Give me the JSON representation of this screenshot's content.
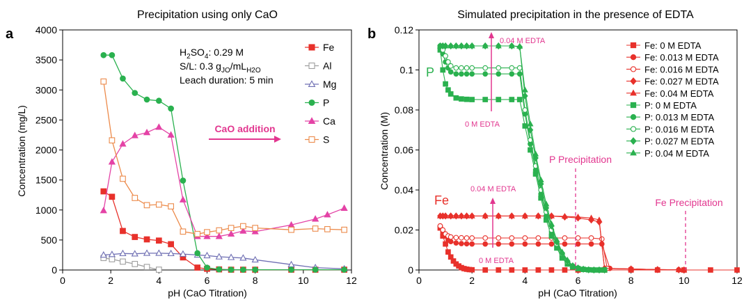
{
  "panel_a": {
    "letter": "a",
    "title": "Precipitation using only CaO",
    "xlabel": "pH (CaO Titration)",
    "ylabel": "Concentration (mg/L)",
    "xlim": [
      0,
      12
    ],
    "ylim": [
      0,
      4000
    ],
    "xticks": [
      "0",
      "2",
      "4",
      "6",
      "8",
      "10",
      "12"
    ],
    "yticks": [
      "0",
      "500",
      "1000",
      "1500",
      "2000",
      "2500",
      "3000",
      "3500",
      "4000"
    ],
    "ann_h2so4": [
      "H",
      "2",
      "SO",
      "4",
      ": 0.29 M"
    ],
    "ann_sl": [
      "S/L: 0.3 g",
      "JO",
      "/mL",
      "H2O"
    ],
    "ann_leach": "Leach duration: 5 min",
    "arrow_label": "CaO addition"
  },
  "panel_b": {
    "letter": "b",
    "title": "Simulated precipitation in the presence of EDTA",
    "xlabel": "pH (CaO Titration)",
    "ylabel": "Concentration (M)",
    "xlim": [
      0,
      12
    ],
    "ylim": [
      0,
      0.12
    ],
    "xticks": [
      "0",
      "2",
      "4",
      "6",
      "8",
      "10",
      "12"
    ],
    "yticks": [
      "0",
      "0.02",
      "0.04",
      "0.06",
      "0.08",
      "0.1",
      "0.12"
    ],
    "label_P": "P",
    "label_Fe": "Fe",
    "p_top_label": "0.04 M EDTA",
    "p_bottom_label": "0 M EDTA",
    "fe_top_label": "0.04 M EDTA",
    "fe_bottom_label": "0 M EDTA",
    "p_precip_label": "P Precipitation",
    "fe_precip_label": "Fe Precipitation"
  },
  "colors": {
    "Fe": "#e8312b",
    "Al": "#9e9e9e",
    "Mg": "#6f6fb3",
    "P": "#2ab14f",
    "Ca": "#e443a6",
    "S": "#ec8a4a",
    "annotation": "#e2368f"
  },
  "chart_data": [
    {
      "type": "line",
      "title": "Precipitation using only CaO",
      "xlabel": "pH (CaO Titration)",
      "ylabel": "Concentration (mg/L)",
      "xlim": [
        0,
        12
      ],
      "ylim": [
        0,
        4000
      ],
      "grid": false,
      "legend": "right",
      "series": [
        {
          "name": "Fe",
          "marker": "square",
          "filled": true,
          "color": "#e8312b",
          "x": [
            1.7,
            2.05,
            2.5,
            3.0,
            3.5,
            4.0,
            4.5,
            5.0,
            5.6,
            6.0,
            6.5,
            7.0,
            7.5,
            8.0,
            9.5,
            10.5,
            11.7
          ],
          "y": [
            1310,
            1220,
            650,
            550,
            510,
            490,
            430,
            210,
            40,
            20,
            10,
            5,
            5,
            5,
            5,
            5,
            5
          ]
        },
        {
          "name": "Al",
          "marker": "square",
          "filled": false,
          "color": "#9e9e9e",
          "x": [
            1.7,
            2.05,
            2.5,
            3.0,
            3.5,
            4.0
          ],
          "y": [
            200,
            180,
            140,
            100,
            50,
            5
          ]
        },
        {
          "name": "Mg",
          "marker": "triangle",
          "filled": false,
          "color": "#6f6fb3",
          "x": [
            1.7,
            2.05,
            2.5,
            3.0,
            3.5,
            4.0,
            4.5,
            5.0,
            5.6,
            6.0,
            6.5,
            7.0,
            7.5,
            8.0,
            9.5,
            10.5,
            11.7
          ],
          "y": [
            250,
            260,
            275,
            270,
            280,
            280,
            275,
            265,
            250,
            240,
            220,
            210,
            200,
            170,
            90,
            40,
            20
          ]
        },
        {
          "name": "P",
          "marker": "circle",
          "filled": true,
          "color": "#2ab14f",
          "x": [
            1.7,
            2.05,
            2.5,
            3.0,
            3.5,
            4.0,
            4.5,
            5.0,
            5.6,
            6.0,
            6.5,
            7.0,
            7.5,
            8.0,
            9.5,
            10.5,
            11.7
          ],
          "y": [
            3580,
            3580,
            3190,
            2950,
            2840,
            2820,
            2690,
            1490,
            280,
            40,
            10,
            5,
            5,
            5,
            5,
            5,
            5
          ]
        },
        {
          "name": "Ca",
          "marker": "triangle",
          "filled": true,
          "color": "#e443a6",
          "x": [
            1.7,
            2.05,
            2.5,
            3.0,
            3.5,
            4.0,
            4.5,
            5.0,
            5.6,
            6.0,
            6.5,
            7.0,
            7.5,
            8.0,
            9.5,
            10.5,
            11.0,
            11.7
          ],
          "y": [
            990,
            1800,
            2100,
            2240,
            2290,
            2380,
            2250,
            1170,
            560,
            560,
            560,
            600,
            650,
            640,
            750,
            850,
            920,
            1030
          ]
        },
        {
          "name": "S",
          "marker": "square",
          "filled": false,
          "color": "#ec8a4a",
          "x": [
            1.7,
            2.05,
            2.5,
            3.0,
            3.5,
            4.0,
            4.5,
            5.0,
            5.6,
            6.0,
            6.5,
            7.0,
            7.5,
            8.0,
            9.5,
            10.5,
            11.0,
            11.7
          ],
          "y": [
            3140,
            2160,
            1520,
            1200,
            1080,
            1090,
            1060,
            640,
            600,
            630,
            660,
            700,
            730,
            700,
            670,
            690,
            680,
            670
          ]
        }
      ]
    },
    {
      "type": "line",
      "title": "Simulated precipitation in the presence of EDTA",
      "xlabel": "pH (CaO Titration)",
      "ylabel": "Concentration (M)",
      "xlim": [
        0,
        12
      ],
      "ylim": [
        0,
        0.12
      ],
      "grid": false,
      "legend": "right",
      "series": [
        {
          "name": "Fe: 0 M EDTA",
          "marker": "square",
          "filled": true,
          "color": "#e8312b",
          "x": [
            0.8,
            0.9,
            1.0,
            1.1,
            1.2,
            1.3,
            1.4,
            1.5,
            1.6,
            1.7,
            1.8,
            1.9,
            2.0,
            2.5,
            3.0,
            3.5,
            4.0,
            4.5,
            5.0,
            5.5,
            6.0,
            7.0,
            8.0,
            9.0,
            10.0,
            11.0,
            12.0
          ],
          "y": [
            0.021,
            0.017,
            0.013,
            0.009,
            0.0065,
            0.0045,
            0.003,
            0.002,
            0.0012,
            0.0007,
            0.0004,
            0.0002,
            0.0001,
            0,
            0,
            0,
            0,
            0,
            0,
            0,
            0,
            0,
            0,
            0,
            0,
            0,
            0
          ]
        },
        {
          "name": "Fe: 0.013 M EDTA",
          "marker": "circle",
          "filled": true,
          "color": "#e8312b",
          "x": [
            0.8,
            0.9,
            1.0,
            1.1,
            1.2,
            1.4,
            1.6,
            1.8,
            2.0,
            2.5,
            3.0,
            3.5,
            4.0,
            4.5,
            5.0,
            5.5,
            6.0,
            6.5,
            6.9,
            7.2,
            8.0,
            9.0,
            9.8,
            10.0
          ],
          "y": [
            0.022,
            0.019,
            0.017,
            0.015,
            0.0142,
            0.0135,
            0.0132,
            0.0131,
            0.013,
            0.013,
            0.013,
            0.013,
            0.013,
            0.013,
            0.013,
            0.013,
            0.013,
            0.013,
            0.013,
            0.0008,
            0.0005,
            0.0002,
            0.0001,
            0
          ]
        },
        {
          "name": "Fe: 0.016 M EDTA",
          "marker": "circle",
          "filled": false,
          "color": "#e8312b",
          "x": [
            0.8,
            0.9,
            1.0,
            1.1,
            1.2,
            1.4,
            1.6,
            1.8,
            2.0,
            2.5,
            3.0,
            3.5,
            4.0,
            4.5,
            5.0,
            5.5,
            6.0,
            6.5,
            6.9,
            7.1,
            8.0,
            9.0,
            9.8,
            10.0
          ],
          "y": [
            0.022,
            0.02,
            0.018,
            0.017,
            0.0165,
            0.0162,
            0.0161,
            0.016,
            0.016,
            0.016,
            0.016,
            0.016,
            0.016,
            0.016,
            0.016,
            0.016,
            0.016,
            0.016,
            0.0155,
            0.0008,
            0.0005,
            0.0002,
            0.0001,
            0
          ]
        },
        {
          "name": "Fe: 0.027 M EDTA",
          "marker": "diamond",
          "filled": true,
          "color": "#e8312b",
          "x": [
            0.8,
            0.9,
            1.0,
            1.2,
            1.4,
            1.6,
            1.8,
            2.0,
            2.5,
            3.0,
            3.5,
            4.0,
            4.5,
            5.0,
            5.5,
            6.0,
            6.5,
            6.8,
            7.0,
            8.0,
            9.0,
            9.8,
            10.0
          ],
          "y": [
            0.027,
            0.027,
            0.027,
            0.027,
            0.027,
            0.027,
            0.027,
            0.027,
            0.027,
            0.027,
            0.027,
            0.027,
            0.027,
            0.027,
            0.0265,
            0.026,
            0.025,
            0.024,
            0.0008,
            0.0005,
            0.0002,
            0.0001,
            0
          ]
        },
        {
          "name": "Fe: 0.04 M EDTA",
          "marker": "triangle",
          "filled": true,
          "color": "#e8312b",
          "x": [
            0.8,
            0.9,
            1.0,
            1.2,
            1.4,
            1.6,
            1.8,
            2.0,
            2.5,
            3.0,
            3.5,
            4.0,
            4.5,
            5.0,
            5.5,
            6.0,
            6.5,
            6.8,
            7.0,
            8.0,
            9.0,
            9.8,
            10.0
          ],
          "y": [
            0.027,
            0.027,
            0.027,
            0.027,
            0.027,
            0.027,
            0.027,
            0.027,
            0.027,
            0.027,
            0.027,
            0.027,
            0.027,
            0.027,
            0.0268,
            0.0265,
            0.026,
            0.025,
            0.0008,
            0.0005,
            0.0002,
            0.0001,
            0
          ]
        },
        {
          "name": "P: 0 M EDTA",
          "marker": "square",
          "filled": true,
          "color": "#2ab14f",
          "x": [
            0.8,
            0.9,
            1.0,
            1.1,
            1.2,
            1.4,
            1.6,
            1.8,
            2.0,
            2.5,
            3.0,
            3.5,
            3.8,
            4.0,
            4.2,
            4.4,
            4.6,
            4.8,
            5.0,
            5.2,
            5.4,
            5.6,
            5.8,
            6.0,
            6.2,
            6.4,
            6.6,
            6.8,
            7.0
          ],
          "y": [
            0.11,
            0.1,
            0.093,
            0.09,
            0.088,
            0.086,
            0.0855,
            0.0853,
            0.0852,
            0.0852,
            0.0852,
            0.0852,
            0.0852,
            0.072,
            0.06,
            0.048,
            0.036,
            0.025,
            0.017,
            0.011,
            0.006,
            0.003,
            0.0015,
            0.0007,
            0.0003,
            0.0001,
            0,
            0,
            0
          ]
        },
        {
          "name": "P: 0.013 M EDTA",
          "marker": "circle",
          "filled": true,
          "color": "#2ab14f",
          "x": [
            0.8,
            0.9,
            1.0,
            1.1,
            1.2,
            1.4,
            1.6,
            1.8,
            2.0,
            2.5,
            3.0,
            3.5,
            3.8,
            4.0,
            4.2,
            4.4,
            4.6,
            4.8,
            5.0,
            5.2,
            5.4,
            5.6,
            5.8,
            6.0,
            6.2,
            6.4,
            6.6,
            6.8,
            7.0
          ],
          "y": [
            0.112,
            0.108,
            0.104,
            0.101,
            0.099,
            0.098,
            0.098,
            0.098,
            0.098,
            0.098,
            0.098,
            0.098,
            0.098,
            0.078,
            0.063,
            0.05,
            0.038,
            0.027,
            0.019,
            0.012,
            0.007,
            0.0035,
            0.0015,
            0.0007,
            0.0003,
            0.0001,
            0,
            0,
            0
          ]
        },
        {
          "name": "P: 0.016 M EDTA",
          "marker": "circle",
          "filled": false,
          "color": "#2ab14f",
          "x": [
            0.8,
            0.9,
            1.0,
            1.1,
            1.2,
            1.4,
            1.6,
            1.8,
            2.0,
            2.5,
            3.0,
            3.5,
            3.8,
            4.0,
            4.2,
            4.4,
            4.6,
            4.8,
            5.0,
            5.2,
            5.4,
            5.6,
            5.8,
            6.0,
            6.2,
            6.4,
            6.6,
            6.8,
            7.0
          ],
          "y": [
            0.112,
            0.11,
            0.107,
            0.104,
            0.102,
            0.101,
            0.101,
            0.101,
            0.101,
            0.101,
            0.101,
            0.101,
            0.101,
            0.08,
            0.065,
            0.052,
            0.04,
            0.029,
            0.02,
            0.013,
            0.008,
            0.004,
            0.002,
            0.001,
            0.0004,
            0.0001,
            0,
            0,
            0
          ]
        },
        {
          "name": "P: 0.027 M EDTA",
          "marker": "diamond",
          "filled": true,
          "color": "#2ab14f",
          "x": [
            0.8,
            0.9,
            1.0,
            1.2,
            1.4,
            1.6,
            1.8,
            2.0,
            2.5,
            3.0,
            3.5,
            3.8,
            4.0,
            4.2,
            4.4,
            4.6,
            4.8,
            5.0,
            5.2,
            5.4,
            5.6,
            5.8,
            6.0,
            6.2,
            6.4,
            6.6,
            6.8,
            7.0
          ],
          "y": [
            0.112,
            0.112,
            0.112,
            0.112,
            0.112,
            0.112,
            0.112,
            0.112,
            0.112,
            0.112,
            0.112,
            0.1115,
            0.087,
            0.07,
            0.056,
            0.043,
            0.031,
            0.022,
            0.014,
            0.0085,
            0.0045,
            0.002,
            0.001,
            0.0004,
            0.0001,
            0,
            0,
            0
          ]
        },
        {
          "name": "P: 0.04 M EDTA",
          "marker": "triangle",
          "filled": true,
          "color": "#2ab14f",
          "x": [
            0.8,
            0.9,
            1.0,
            1.2,
            1.4,
            1.6,
            1.8,
            2.0,
            2.5,
            3.0,
            3.5,
            3.8,
            4.0,
            4.2,
            4.4,
            4.6,
            4.8,
            5.0,
            5.2,
            5.4,
            5.6,
            5.8,
            6.0,
            6.2,
            6.4,
            6.6,
            6.8,
            7.0
          ],
          "y": [
            0.112,
            0.112,
            0.112,
            0.112,
            0.112,
            0.112,
            0.112,
            0.112,
            0.112,
            0.112,
            0.112,
            0.1118,
            0.09,
            0.073,
            0.058,
            0.045,
            0.033,
            0.023,
            0.015,
            0.009,
            0.005,
            0.0022,
            0.001,
            0.0004,
            0.0001,
            0,
            0,
            0
          ]
        }
      ]
    }
  ]
}
